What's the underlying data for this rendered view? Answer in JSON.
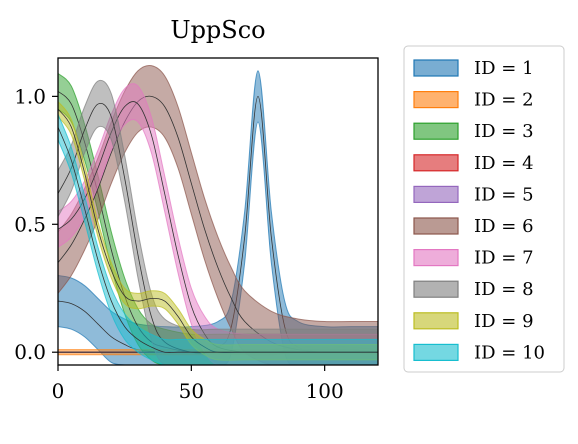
{
  "chart_data": {
    "type": "area",
    "title": "UppSco",
    "xlabel": "",
    "ylabel": "",
    "xlim": [
      0,
      120
    ],
    "ylim": [
      -0.05,
      1.15
    ],
    "xticks": [
      0,
      50,
      100
    ],
    "xtick_labels": [
      "0",
      "50",
      "100"
    ],
    "yticks": [
      0.0,
      0.5,
      1.0
    ],
    "ytick_labels": [
      "0.0",
      "0.5",
      "1.0"
    ],
    "grid": false,
    "legend_position": "outside-right",
    "series": [
      {
        "name": "ID = 1",
        "color": "#1f77b4",
        "x": [
          0,
          5,
          10,
          15,
          20,
          25,
          30,
          40,
          50,
          60,
          65,
          70,
          75,
          80,
          85,
          90,
          100,
          110,
          120
        ],
        "y": [
          0.2,
          0.19,
          0.16,
          0.11,
          0.06,
          0.03,
          0.01,
          0.0,
          0.0,
          0.02,
          0.1,
          0.45,
          1.0,
          0.45,
          0.1,
          0.02,
          0.0,
          0.0,
          0.0
        ],
        "band": 0.1
      },
      {
        "name": "ID = 2",
        "color": "#ff7f0e",
        "x": [
          0,
          10,
          20,
          30,
          40,
          50,
          60,
          70,
          80,
          90,
          100,
          110,
          120
        ],
        "y": [
          0.0,
          0.0,
          0.0,
          0.0,
          0.0,
          0.0,
          0.0,
          0.0,
          0.0,
          0.01,
          0.01,
          0.01,
          0.0
        ],
        "band": 0.01
      },
      {
        "name": "ID = 3",
        "color": "#2ca02c",
        "x": [
          0,
          5,
          10,
          15,
          20,
          25,
          30,
          35,
          40,
          50,
          60,
          80,
          100,
          120
        ],
        "y": [
          1.02,
          0.97,
          0.82,
          0.62,
          0.4,
          0.22,
          0.1,
          0.04,
          0.02,
          0.0,
          0.0,
          0.0,
          0.0,
          0.0
        ],
        "band": 0.07
      },
      {
        "name": "ID = 4",
        "color": "#d62728",
        "x": [
          0,
          10,
          20,
          30,
          40,
          50,
          60,
          80,
          100,
          120
        ],
        "y": [
          0.0,
          0.0,
          0.0,
          0.0,
          0.0,
          0.0,
          0.0,
          0.0,
          0.0,
          0.0
        ],
        "band": 0.0
      },
      {
        "name": "ID = 5",
        "color": "#9467bd",
        "x": [
          0,
          10,
          20,
          30,
          40,
          50,
          60,
          80,
          100,
          120
        ],
        "y": [
          0.0,
          0.0,
          0.0,
          0.0,
          0.0,
          0.0,
          0.0,
          0.0,
          0.0,
          0.0
        ],
        "band": 0.0
      },
      {
        "name": "ID = 6",
        "color": "#8c564b",
        "x": [
          0,
          5,
          10,
          15,
          20,
          25,
          30,
          35,
          40,
          45,
          50,
          55,
          60,
          65,
          70,
          80,
          90,
          100,
          110,
          120
        ],
        "y": [
          0.35,
          0.42,
          0.52,
          0.64,
          0.78,
          0.9,
          0.98,
          1.0,
          0.96,
          0.84,
          0.66,
          0.48,
          0.33,
          0.21,
          0.12,
          0.04,
          0.01,
          0.0,
          0.0,
          0.0
        ],
        "band": 0.12
      },
      {
        "name": "ID = 7",
        "color": "#e377c2",
        "x": [
          0,
          5,
          10,
          15,
          20,
          25,
          30,
          35,
          40,
          45,
          50,
          55,
          60,
          70,
          80,
          100,
          120
        ],
        "y": [
          0.48,
          0.52,
          0.6,
          0.72,
          0.86,
          0.96,
          0.97,
          0.85,
          0.62,
          0.38,
          0.18,
          0.07,
          0.02,
          0.0,
          0.0,
          0.0,
          0.0
        ],
        "band": 0.07
      },
      {
        "name": "ID = 8",
        "color": "#7f7f7f",
        "x": [
          0,
          5,
          10,
          15,
          20,
          25,
          30,
          35,
          40,
          50,
          60,
          80,
          100,
          120
        ],
        "y": [
          0.62,
          0.72,
          0.87,
          0.97,
          0.92,
          0.68,
          0.38,
          0.14,
          0.04,
          0.0,
          0.0,
          0.0,
          0.0,
          0.0
        ],
        "band": 0.09
      },
      {
        "name": "ID = 9",
        "color": "#bcbd22",
        "x": [
          0,
          5,
          10,
          15,
          20,
          25,
          30,
          35,
          40,
          45,
          50,
          55,
          60,
          70,
          80,
          100,
          120
        ],
        "y": [
          0.95,
          0.88,
          0.7,
          0.48,
          0.32,
          0.22,
          0.2,
          0.21,
          0.2,
          0.14,
          0.06,
          0.02,
          0.0,
          0.0,
          0.0,
          0.0,
          0.0
        ],
        "band": 0.03
      },
      {
        "name": "ID = 10",
        "color": "#17becf",
        "x": [
          0,
          5,
          10,
          15,
          20,
          25,
          30,
          35,
          40,
          45,
          50,
          60,
          80,
          100,
          120
        ],
        "y": [
          0.88,
          0.75,
          0.56,
          0.36,
          0.2,
          0.1,
          0.05,
          0.02,
          0.0,
          0.0,
          0.0,
          0.0,
          0.0,
          0.0,
          0.0
        ],
        "band": 0.05
      }
    ]
  }
}
